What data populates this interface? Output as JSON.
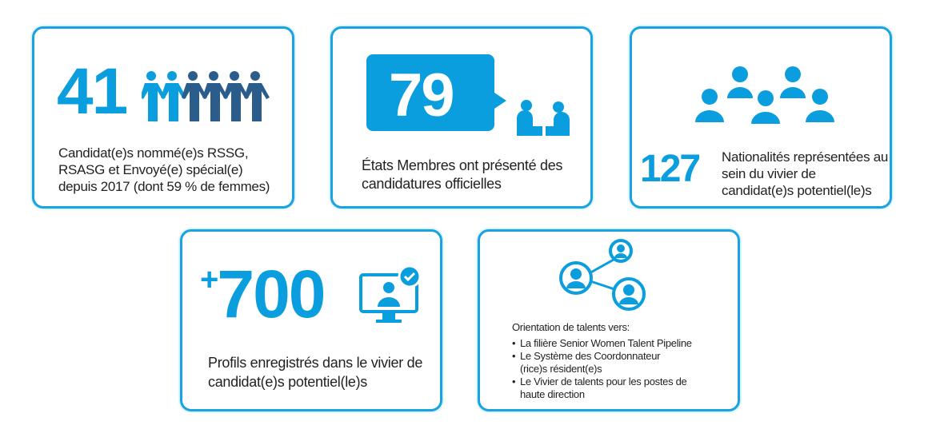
{
  "cards": [
    {
      "number": "41",
      "text": "Candidat(e)s nommé(e)s RSSG, RSASG et Envoyé(e) spécial(e) depuis 2017 (dont 59 % de femmes)",
      "icon": "people-holding-hands-icon"
    },
    {
      "number": "79",
      "text": "États Membres ont présenté des candidatures officielles",
      "icon": "speech-bubble-meeting-icon"
    },
    {
      "number": "127",
      "text": "Nationalités représentées au sein du vivier de candidat(e)s potentiel(le)s",
      "icon": "group-people-icon"
    },
    {
      "number": "+700",
      "prefix": "+",
      "value": "700",
      "text": "Profils enregistrés dans le vivier de candidat(e)s potentiel(le)s",
      "icon": "monitor-profile-check-icon"
    },
    {
      "title": "Orientation de talents vers:",
      "items": [
        "La filière Senior Women Talent Pipeline",
        "Le Système des Coordonnateur (rice)s résident(e)s",
        "Le Vivier de talents pour les postes de haute direction"
      ],
      "icon": "network-people-icon"
    }
  ],
  "colors": {
    "accent": "#0a9ede",
    "dark": "#2b5d8c",
    "text": "#222222"
  }
}
